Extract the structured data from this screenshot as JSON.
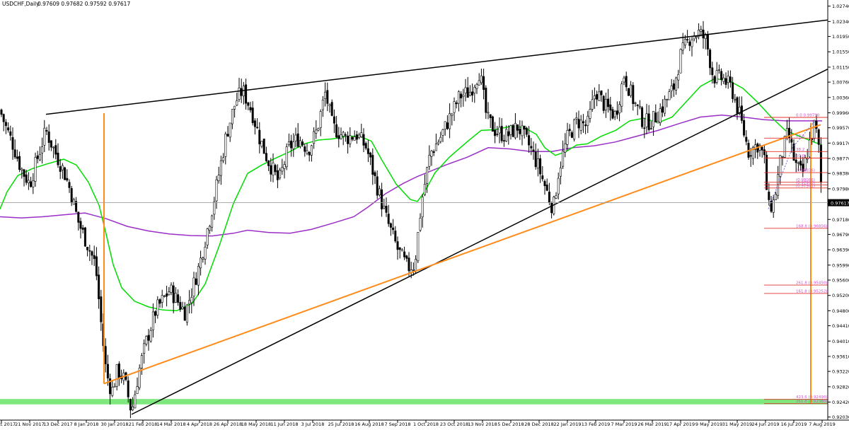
{
  "header": {
    "symbol": "USDCHF,Daily",
    "ohlc": "0.97609 0.97682 0.97592 0.97617"
  },
  "colors": {
    "background": "#ffffff",
    "bull_candle": "#000000",
    "bear_candle": "#000000",
    "ma_fast": "#00dd00",
    "ma_slow": "#9a2fc7",
    "trendline": "#000000",
    "orange_line": "#ff8c1a",
    "support_zone": "#7ee87e",
    "fib_red": "#e0302f",
    "fib_text": "#d24fd2",
    "current_price_line": "#a0a0a0",
    "price_tag": "#000000"
  },
  "chart_data": {
    "type": "candlestick",
    "symbol": "USDCHF",
    "timeframe": "Daily",
    "current_price": "0.97617",
    "ylim": [
      0.9195,
      1.029
    ],
    "y_ticks": [
      "1.02740",
      "1.02340",
      "1.01950",
      "1.01550",
      "1.01150",
      "1.00760",
      "1.00360",
      "0.99960",
      "0.99570",
      "0.99170",
      "0.98770",
      "0.98380",
      "0.97980",
      "0.97180",
      "0.96790",
      "0.96390",
      "0.95990",
      "0.95600",
      "0.95200",
      "0.94800",
      "0.94410",
      "0.94010",
      "0.93610",
      "0.93220",
      "0.92820",
      "0.92420",
      "0.92030"
    ],
    "x_ticks": [
      "31 Oct 2017",
      "21 Nov 2017",
      "13 Dec 2017",
      "8 Jan 2018",
      "30 Jan 2018",
      "21 Feb 2018",
      "14 Mar 2018",
      "4 Apr 2018",
      "26 Apr 2018",
      "18 May 2018",
      "11 Jun 2018",
      "3 Jul 2018",
      "25 Jul 2018",
      "16 Aug 2018",
      "7 Sep 2018",
      "1 Oct 2018",
      "23 Oct 2018",
      "13 Nov 2018",
      "5 Dec 2018",
      "28 Dec 2018",
      "22 Jan 2019",
      "13 Feb 2019",
      "7 Mar 2019",
      "26 Mar 2019",
      "17 Apr 2019",
      "9 May 2019",
      "31 May 2019",
      "24 Jun 2019",
      "16 Jul 2019",
      "7 Aug 2019"
    ],
    "price_path": [
      [
        0,
        1.0003
      ],
      [
        8,
        0.996
      ],
      [
        18,
        0.9915
      ],
      [
        30,
        0.985
      ],
      [
        42,
        0.981
      ],
      [
        52,
        0.9872
      ],
      [
        65,
        0.995
      ],
      [
        75,
        0.9905
      ],
      [
        90,
        0.9845
      ],
      [
        100,
        0.979
      ],
      [
        110,
        0.9715
      ],
      [
        122,
        0.966
      ],
      [
        135,
        0.96
      ],
      [
        143,
        0.9445
      ],
      [
        150,
        0.932
      ],
      [
        158,
        0.9268
      ],
      [
        166,
        0.9325
      ],
      [
        176,
        0.93
      ],
      [
        186,
        0.9215
      ],
      [
        196,
        0.932
      ],
      [
        206,
        0.9395
      ],
      [
        220,
        0.948
      ],
      [
        240,
        0.9535
      ],
      [
        262,
        0.9475
      ],
      [
        282,
        0.96
      ],
      [
        302,
        0.9765
      ],
      [
        320,
        0.994
      ],
      [
        333,
        1.0025
      ],
      [
        343,
        1.0055
      ],
      [
        356,
        1.0
      ],
      [
        366,
        0.9935
      ],
      [
        378,
        0.9875
      ],
      [
        394,
        0.9815
      ],
      [
        408,
        0.9905
      ],
      [
        422,
        0.993
      ],
      [
        436,
        0.99
      ],
      [
        448,
        0.995
      ],
      [
        460,
        1.005
      ],
      [
        470,
        0.996
      ],
      [
        488,
        0.993
      ],
      [
        504,
        0.994
      ],
      [
        518,
        0.9905
      ],
      [
        532,
        0.981
      ],
      [
        546,
        0.972
      ],
      [
        562,
        0.964
      ],
      [
        576,
        0.9592
      ],
      [
        586,
        0.96
      ],
      [
        596,
        0.9765
      ],
      [
        608,
        0.989
      ],
      [
        622,
        0.993
      ],
      [
        636,
        0.9985
      ],
      [
        650,
        1.004
      ],
      [
        664,
        1.005
      ],
      [
        678,
        1.0105
      ],
      [
        688,
        0.998
      ],
      [
        700,
        0.995
      ],
      [
        716,
        0.9935
      ],
      [
        732,
        0.996
      ],
      [
        748,
        0.991
      ],
      [
        760,
        0.986
      ],
      [
        774,
        0.9785
      ],
      [
        782,
        0.9745
      ],
      [
        790,
        0.985
      ],
      [
        802,
        0.993
      ],
      [
        816,
        0.9975
      ],
      [
        830,
        0.996
      ],
      [
        842,
        1.0055
      ],
      [
        856,
        1.001
      ],
      [
        870,
        0.999
      ],
      [
        882,
        1.0095
      ],
      [
        896,
        1.0025
      ],
      [
        910,
        0.997
      ],
      [
        922,
        0.9975
      ],
      [
        936,
        1.001
      ],
      [
        952,
        1.006
      ],
      [
        962,
        1.0145
      ],
      [
        976,
        1.0195
      ],
      [
        988,
        1.0205
      ],
      [
        998,
        1.0185
      ],
      [
        1008,
        1.009
      ],
      [
        1022,
        1.0085
      ],
      [
        1034,
        1.006
      ],
      [
        1046,
        0.9985
      ],
      [
        1058,
        0.9895
      ],
      [
        1072,
        0.9915
      ],
      [
        1080,
        0.988
      ],
      [
        1086,
        0.9745
      ],
      [
        1094,
        0.9765
      ],
      [
        1104,
        0.988
      ],
      [
        1114,
        0.9945
      ],
      [
        1124,
        0.986
      ],
      [
        1134,
        0.9835
      ],
      [
        1144,
        0.9915
      ],
      [
        1152,
        0.997
      ],
      [
        1158,
        0.989
      ],
      [
        1162,
        0.976
      ]
    ],
    "ma_fast": [
      [
        0,
        0.9745
      ],
      [
        10,
        0.979
      ],
      [
        25,
        0.9832
      ],
      [
        45,
        0.985
      ],
      [
        65,
        0.9862
      ],
      [
        90,
        0.9875
      ],
      [
        108,
        0.986
      ],
      [
        125,
        0.9815
      ],
      [
        140,
        0.9755
      ],
      [
        150,
        0.968
      ],
      [
        160,
        0.96
      ],
      [
        172,
        0.954
      ],
      [
        190,
        0.9505
      ],
      [
        210,
        0.949
      ],
      [
        230,
        0.9482
      ],
      [
        250,
        0.948
      ],
      [
        272,
        0.95
      ],
      [
        290,
        0.955
      ],
      [
        310,
        0.965
      ],
      [
        330,
        0.976
      ],
      [
        350,
        0.9838
      ],
      [
        370,
        0.986
      ],
      [
        392,
        0.988
      ],
      [
        410,
        0.9895
      ],
      [
        430,
        0.9915
      ],
      [
        450,
        0.9925
      ],
      [
        470,
        0.9928
      ],
      [
        490,
        0.9935
      ],
      [
        508,
        0.9935
      ],
      [
        525,
        0.9922
      ],
      [
        540,
        0.9872
      ],
      [
        560,
        0.981
      ],
      [
        580,
        0.977
      ],
      [
        590,
        0.9765
      ],
      [
        600,
        0.979
      ],
      [
        615,
        0.984
      ],
      [
        635,
        0.988
      ],
      [
        660,
        0.992
      ],
      [
        680,
        0.995
      ],
      [
        700,
        0.9952
      ],
      [
        720,
        0.996
      ],
      [
        740,
        0.9958
      ],
      [
        758,
        0.994
      ],
      [
        770,
        0.9905
      ],
      [
        785,
        0.9885
      ],
      [
        800,
        0.9895
      ],
      [
        815,
        0.9912
      ],
      [
        830,
        0.9915
      ],
      [
        850,
        0.9935
      ],
      [
        870,
        0.995
      ],
      [
        890,
        0.9975
      ],
      [
        910,
        0.9982
      ],
      [
        930,
        0.997
      ],
      [
        950,
        0.9985
      ],
      [
        970,
        1.0025
      ],
      [
        990,
        1.0065
      ],
      [
        1010,
        1.0085
      ],
      [
        1030,
        1.008
      ],
      [
        1050,
        1.006
      ],
      [
        1070,
        1.0025
      ],
      [
        1090,
        0.9985
      ],
      [
        1110,
        0.995
      ],
      [
        1130,
        0.9935
      ],
      [
        1150,
        0.992
      ],
      [
        1162,
        0.9912
      ]
    ],
    "ma_slow": [
      [
        0,
        0.9725
      ],
      [
        30,
        0.9722
      ],
      [
        60,
        0.9725
      ],
      [
        90,
        0.973
      ],
      [
        120,
        0.9735
      ],
      [
        150,
        0.972
      ],
      [
        180,
        0.97
      ],
      [
        210,
        0.9688
      ],
      [
        240,
        0.968
      ],
      [
        270,
        0.9676
      ],
      [
        300,
        0.9675
      ],
      [
        330,
        0.9682
      ],
      [
        350,
        0.969
      ],
      [
        380,
        0.9684
      ],
      [
        410,
        0.9682
      ],
      [
        440,
        0.9692
      ],
      [
        470,
        0.9708
      ],
      [
        500,
        0.9725
      ],
      [
        520,
        0.975
      ],
      [
        545,
        0.9785
      ],
      [
        570,
        0.9812
      ],
      [
        590,
        0.983
      ],
      [
        610,
        0.9845
      ],
      [
        630,
        0.986
      ],
      [
        660,
        0.988
      ],
      [
        690,
        0.9905
      ],
      [
        720,
        0.9902
      ],
      [
        750,
        0.9895
      ],
      [
        780,
        0.9895
      ],
      [
        810,
        0.9905
      ],
      [
        840,
        0.991
      ],
      [
        870,
        0.992
      ],
      [
        900,
        0.9935
      ],
      [
        930,
        0.995
      ],
      [
        960,
        0.9968
      ],
      [
        990,
        0.9985
      ],
      [
        1020,
        0.999
      ],
      [
        1050,
        0.9985
      ],
      [
        1080,
        0.9978
      ],
      [
        1110,
        0.9975
      ],
      [
        1140,
        0.9975
      ],
      [
        1162,
        0.9975
      ]
    ],
    "lines": [
      {
        "name": "upper-trendline",
        "x1": 65,
        "y1": 0.9992,
        "x2": 1170,
        "y2": 1.0238
      },
      {
        "name": "lower-trendline",
        "x1": 186,
        "y1": 0.921,
        "x2": 1170,
        "y2": 1.011
      },
      {
        "name": "orange-trendline",
        "x1": 147,
        "y1": 0.929,
        "x2": 1160,
        "y2": 0.9965
      },
      {
        "name": "orange-vertical-left",
        "x1": 147,
        "y1": 0.9995,
        "x2": 147,
        "y2": 0.929
      },
      {
        "name": "orange-vertical-right",
        "x1": 1146,
        "y1": 0.997,
        "x2": 1146,
        "y2": 0.9238
      }
    ],
    "support_zone": {
      "y_from": 0.9236,
      "y_to": 0.925
    },
    "fib_levels": [
      {
        "label": "0.0",
        "price": "0.99790",
        "y": 0.9984
      },
      {
        "label": "23.6",
        "price": "",
        "y": 0.993
      },
      {
        "label": "38.2",
        "price": "",
        "y": 0.9895
      },
      {
        "label": "50.0",
        "price": "",
        "y": 0.9878
      },
      {
        "label": "",
        "price": "(0.98336)",
        "y": 0.984
      },
      {
        "label": "",
        "price": "(0.98086)",
        "y": 0.9815
      },
      {
        "label": "",
        "price": "(0.97993)",
        "y": 0.9808
      },
      {
        "label": "",
        "price": "(0.97941)",
        "y": 0.98
      },
      {
        "label": "168.8",
        "price": "(0.96856)",
        "y": 0.9695
      },
      {
        "label": "261.8",
        "price": "(0.95450)",
        "y": 0.9547
      },
      {
        "label": "161.8",
        "price": "(0.95252)",
        "y": 0.9525
      },
      {
        "label": "423.6",
        "price": "(0.92490)",
        "y": 0.9249
      },
      {
        "label": "261.8",
        "price": "(0.92380)",
        "y": 0.9238
      }
    ]
  }
}
